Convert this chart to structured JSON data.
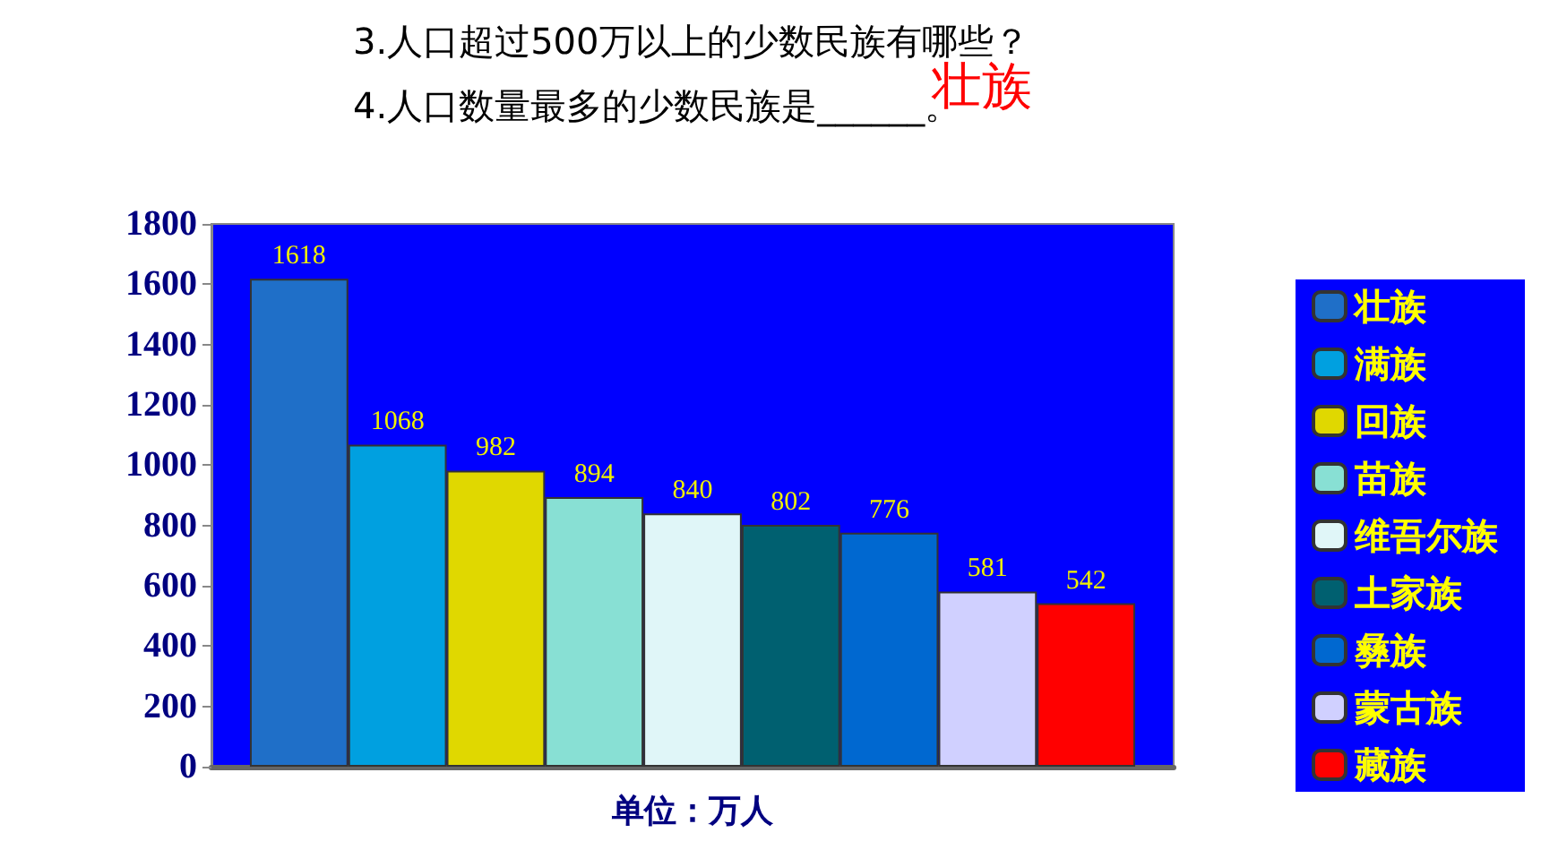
{
  "chart_data": {
    "type": "bar",
    "title": "3.人口超过500万以上的少数民族有哪些？",
    "subtitle": "4.人口数量最多的少数民族是______。",
    "annotations": [
      "壮族"
    ],
    "xlabel": "单位：万人",
    "categories": [
      null
    ],
    "series": [
      {
        "name": "壮族",
        "color": "#1f6fc8",
        "values": [
          1618
        ]
      },
      {
        "name": "满族",
        "color": "#00a0e0",
        "values": [
          1068
        ]
      },
      {
        "name": "回族",
        "color": "#e0d800",
        "values": [
          982
        ]
      },
      {
        "name": "苗族",
        "color": "#88e0d4",
        "values": [
          894
        ]
      },
      {
        "name": "维吾尔族",
        "color": "#e0f6f8",
        "values": [
          840
        ]
      },
      {
        "name": "土家族",
        "color": "#006070",
        "values": [
          802
        ]
      },
      {
        "name": "彝族",
        "color": "#0068d0",
        "values": [
          776
        ]
      },
      {
        "name": "蒙古族",
        "color": "#d0d0ff",
        "values": [
          581
        ]
      },
      {
        "name": "藏族",
        "color": "#ff0000",
        "values": [
          542
        ]
      }
    ],
    "ylim": [
      0,
      1800
    ],
    "yticks": [
      0,
      200,
      400,
      600,
      800,
      1000,
      1200,
      1400,
      1600,
      1800
    ],
    "data_labels": true,
    "grid": false,
    "legend": "right"
  }
}
